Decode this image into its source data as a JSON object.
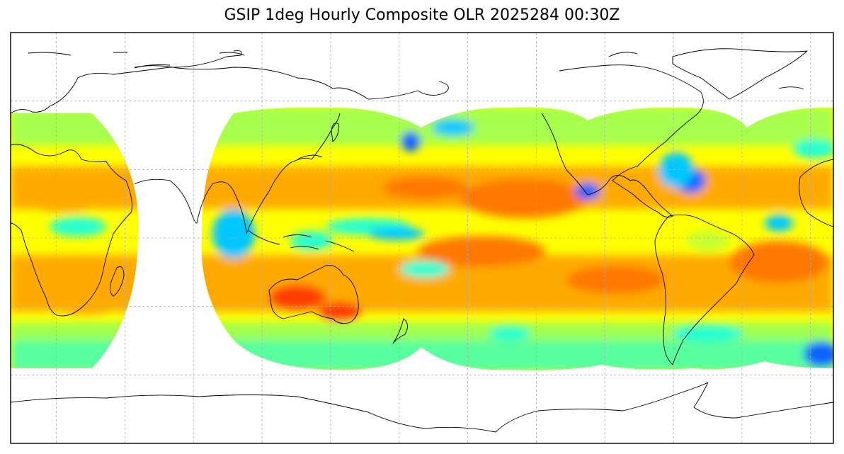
{
  "title": "GSIP 1deg Hourly Composite OLR 2025284 00:30Z",
  "map": {
    "projection": "plate-carree",
    "lon_range": [
      -20,
      340
    ],
    "lat_range": [
      -90,
      90
    ],
    "grid_lon_step": 30,
    "grid_lat_step": 30,
    "grid": true,
    "coverage_lat_limit": [
      -60,
      60
    ],
    "coverage_disks_center_lon": [
      0,
      140,
      235,
      300,
      360
    ]
  },
  "colors": {
    "frame": "#000000",
    "grid": "#aaaaaa",
    "coast": "#000000",
    "olr_scale": [
      "#0a64ff",
      "#00c8ff",
      "#28ffd2",
      "#96ff5a",
      "#c8ff32",
      "#ffff00",
      "#ffd200",
      "#ffaa00",
      "#ff7800",
      "#ff3c00"
    ]
  }
}
